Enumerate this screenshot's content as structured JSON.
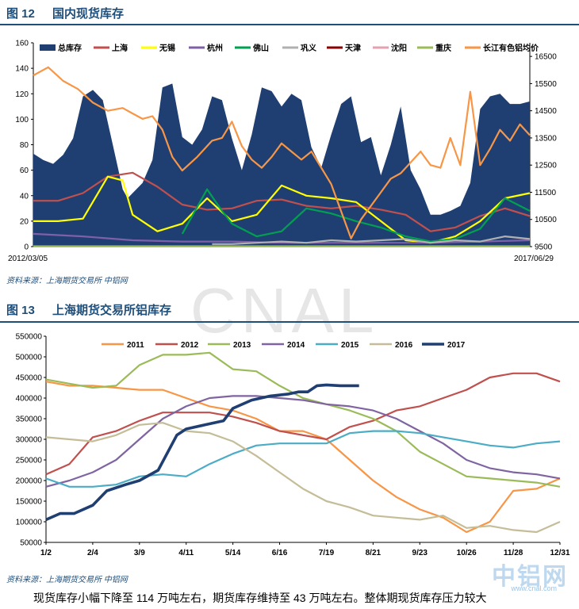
{
  "figure1": {
    "label": "图 12",
    "title": "国内现货库存",
    "source": "资料来源：上海期货交易所   中铝网",
    "chart_data": {
      "type": "area",
      "title": "",
      "x_start_label": "2012/03/05",
      "x_end_label": "2017/06/29",
      "y_left": {
        "min": 0,
        "max": 160,
        "ticks": [
          0,
          20,
          40,
          60,
          80,
          100,
          120,
          140,
          160
        ]
      },
      "y_right": {
        "min": 9500,
        "max": 17000,
        "ticks": [
          9500,
          10500,
          11500,
          12500,
          13500,
          14500,
          15500,
          16500
        ]
      },
      "legend": [
        "总库存",
        "上海",
        "无锡",
        "杭州",
        "佛山",
        "巩义",
        "天津",
        "沈阳",
        "重庆",
        "长江有色铝均价"
      ],
      "series": [
        {
          "name": "总库存",
          "kind": "area",
          "axis": "left",
          "color": "#1f3f73",
          "x": [
            0,
            2,
            4,
            6,
            8,
            10,
            12,
            14,
            16,
            18,
            19,
            20,
            22,
            24,
            26,
            28,
            30,
            32,
            34,
            36,
            38,
            40,
            42,
            44,
            46,
            48,
            50,
            52,
            54,
            56,
            58,
            60,
            62,
            64,
            66,
            68,
            70,
            72,
            74,
            76,
            78,
            80,
            82,
            84,
            86,
            88,
            90,
            92,
            94,
            96,
            98,
            100
          ],
          "y": [
            73,
            68,
            65,
            72,
            85,
            118,
            123,
            115,
            80,
            45,
            38,
            42,
            50,
            68,
            125,
            128,
            86,
            80,
            92,
            118,
            115,
            85,
            60,
            88,
            125,
            122,
            110,
            120,
            115,
            78,
            62,
            88,
            112,
            118,
            82,
            86,
            56,
            80,
            110,
            60,
            45,
            25,
            25,
            28,
            32,
            50,
            108,
            118,
            120,
            112,
            112,
            114
          ]
        },
        {
          "name": "上海",
          "kind": "line",
          "axis": "left",
          "color": "#c0504d",
          "x": [
            0,
            5,
            10,
            15,
            20,
            25,
            30,
            35,
            40,
            45,
            50,
            55,
            60,
            65,
            70,
            75,
            80,
            85,
            90,
            95,
            100
          ],
          "y": [
            36,
            36,
            42,
            55,
            58,
            47,
            33,
            29,
            30,
            36,
            37,
            32,
            30,
            32,
            29,
            25,
            12,
            15,
            24,
            30,
            24
          ]
        },
        {
          "name": "无锡",
          "kind": "line",
          "axis": "left",
          "color": "#ffff00",
          "x": [
            0,
            5,
            10,
            15,
            18,
            20,
            25,
            30,
            35,
            40,
            45,
            50,
            55,
            60,
            65,
            70,
            75,
            80,
            85,
            90,
            95,
            100
          ],
          "y": [
            20,
            20,
            22,
            55,
            52,
            25,
            12,
            18,
            38,
            20,
            25,
            48,
            40,
            38,
            35,
            20,
            5,
            3,
            8,
            20,
            38,
            42
          ]
        },
        {
          "name": "杭州",
          "kind": "line",
          "axis": "left",
          "color": "#7f60a8",
          "x": [
            0,
            10,
            20,
            30,
            40,
            50,
            60,
            70,
            80,
            90,
            100
          ],
          "y": [
            10,
            8,
            5,
            4,
            4,
            3,
            3,
            3,
            3,
            4,
            5
          ]
        },
        {
          "name": "佛山",
          "kind": "line",
          "axis": "left",
          "color": "#00a050",
          "x": [
            30,
            35,
            38,
            40,
            45,
            50,
            55,
            60,
            65,
            70,
            75,
            80,
            85,
            90,
            95,
            100
          ],
          "y": [
            10,
            45,
            28,
            18,
            8,
            12,
            30,
            26,
            20,
            15,
            8,
            4,
            6,
            14,
            38,
            28
          ]
        },
        {
          "name": "巩义",
          "kind": "line",
          "axis": "left",
          "color": "#b0b0b0",
          "x": [
            36,
            40,
            45,
            50,
            55,
            60,
            65,
            70,
            75,
            80,
            85,
            90,
            95,
            100
          ],
          "y": [
            2,
            2,
            3,
            4,
            3,
            5,
            4,
            5,
            6,
            3,
            5,
            4,
            8,
            6
          ]
        },
        {
          "name": "天津",
          "kind": "line",
          "axis": "left",
          "color": "#8b0000",
          "x": [
            0,
            100
          ],
          "y": [
            0.5,
            0.5
          ]
        },
        {
          "name": "沈阳",
          "kind": "line",
          "axis": "left",
          "color": "#e6a0b0",
          "x": [
            0,
            100
          ],
          "y": [
            0.3,
            0.3
          ]
        },
        {
          "name": "重庆",
          "kind": "line",
          "axis": "left",
          "color": "#9bbb59",
          "x": [
            0,
            100
          ],
          "y": [
            0.2,
            0.2
          ]
        },
        {
          "name": "长江有色铝均价",
          "kind": "line",
          "axis": "right",
          "color": "#f79646",
          "x": [
            0,
            3,
            6,
            9,
            12,
            15,
            18,
            20,
            22,
            24,
            26,
            28,
            30,
            33,
            36,
            38,
            40,
            42,
            44,
            46,
            48,
            50,
            52,
            54,
            56,
            58,
            60,
            62,
            64,
            66,
            68,
            70,
            72,
            74,
            76,
            78,
            80,
            82,
            84,
            86,
            88,
            90,
            92,
            94,
            96,
            98,
            100
          ],
          "y": [
            15800,
            16100,
            15600,
            15300,
            14800,
            14500,
            14600,
            14400,
            14200,
            14300,
            13800,
            12800,
            12300,
            12800,
            13400,
            13500,
            14100,
            13200,
            12700,
            12400,
            12800,
            13300,
            13000,
            12700,
            13000,
            12400,
            11800,
            10800,
            9800,
            10500,
            11000,
            11500,
            12000,
            12200,
            12600,
            13000,
            12500,
            12400,
            13500,
            12500,
            15200,
            12500,
            13100,
            13800,
            13400,
            14000,
            13600
          ]
        }
      ]
    }
  },
  "figure2": {
    "label": "图 13",
    "title": "上海期货交易所铝库存",
    "source": "资料来源：上海期货交易所   中铝网",
    "chart_data": {
      "type": "line",
      "title": "",
      "categories": [
        "1/2",
        "2/4",
        "3/9",
        "4/11",
        "5/14",
        "6/16",
        "7/19",
        "8/21",
        "9/23",
        "10/26",
        "11/28",
        "12/31"
      ],
      "ylim": [
        50000,
        550000
      ],
      "yticks": [
        50000,
        100000,
        150000,
        200000,
        250000,
        300000,
        350000,
        400000,
        450000,
        500000,
        550000
      ],
      "legend": [
        "2011",
        "2012",
        "2013",
        "2014",
        "2015",
        "2016",
        "2017"
      ],
      "series": [
        {
          "name": "2011",
          "color": "#f79646",
          "x": [
            0,
            0.5,
            1,
            1.5,
            2,
            2.5,
            3,
            3.5,
            4,
            4.5,
            5,
            5.5,
            6,
            6.5,
            7,
            7.5,
            8,
            8.5,
            9,
            9.5,
            10,
            10.5,
            11
          ],
          "y": [
            440000,
            430000,
            430000,
            425000,
            420000,
            420000,
            400000,
            380000,
            370000,
            350000,
            320000,
            320000,
            300000,
            250000,
            200000,
            160000,
            130000,
            110000,
            75000,
            100000,
            175000,
            180000,
            205000
          ]
        },
        {
          "name": "2012",
          "color": "#c0504d",
          "x": [
            0,
            0.5,
            1,
            1.5,
            2,
            2.5,
            3,
            3.5,
            4,
            4.5,
            5,
            5.5,
            6,
            6.5,
            7,
            7.5,
            8,
            8.5,
            9,
            9.5,
            10,
            10.5,
            11
          ],
          "y": [
            215000,
            240000,
            305000,
            320000,
            345000,
            365000,
            365000,
            365000,
            355000,
            340000,
            320000,
            310000,
            300000,
            330000,
            345000,
            370000,
            380000,
            400000,
            420000,
            450000,
            460000,
            460000,
            440000
          ]
        },
        {
          "name": "2013",
          "color": "#9bbb59",
          "x": [
            0,
            0.5,
            1,
            1.5,
            2,
            2.5,
            3,
            3.5,
            4,
            4.5,
            5,
            5.5,
            6,
            6.5,
            7,
            7.5,
            8,
            8.5,
            9,
            9.5,
            10,
            10.5,
            11
          ],
          "y": [
            445000,
            435000,
            425000,
            430000,
            480000,
            505000,
            505000,
            510000,
            470000,
            465000,
            430000,
            400000,
            385000,
            370000,
            350000,
            320000,
            270000,
            240000,
            210000,
            205000,
            200000,
            195000,
            185000
          ]
        },
        {
          "name": "2014",
          "color": "#8064a2",
          "x": [
            0,
            0.5,
            1,
            1.5,
            2,
            2.5,
            3,
            3.5,
            4,
            4.5,
            5,
            5.5,
            6,
            6.5,
            7,
            7.5,
            8,
            8.5,
            9,
            9.5,
            10,
            10.5,
            11
          ],
          "y": [
            185000,
            200000,
            220000,
            250000,
            300000,
            350000,
            380000,
            400000,
            405000,
            405000,
            400000,
            395000,
            385000,
            380000,
            370000,
            350000,
            320000,
            290000,
            250000,
            230000,
            220000,
            215000,
            205000
          ]
        },
        {
          "name": "2015",
          "color": "#4bacc6",
          "x": [
            0,
            0.5,
            1,
            1.5,
            2,
            2.5,
            3,
            3.5,
            4,
            4.5,
            5,
            5.5,
            6,
            6.5,
            7,
            7.5,
            8,
            8.5,
            9,
            9.5,
            10,
            10.5,
            11
          ],
          "y": [
            205000,
            185000,
            185000,
            190000,
            210000,
            215000,
            210000,
            240000,
            265000,
            285000,
            290000,
            290000,
            290000,
            315000,
            320000,
            320000,
            315000,
            305000,
            295000,
            285000,
            280000,
            290000,
            295000
          ]
        },
        {
          "name": "2016",
          "color": "#c4bd97",
          "x": [
            0,
            0.5,
            1,
            1.5,
            2,
            2.5,
            3,
            3.5,
            4,
            4.5,
            5,
            5.5,
            6,
            6.5,
            7,
            7.5,
            8,
            8.5,
            9,
            9.5,
            10,
            10.5,
            11
          ],
          "y": [
            305000,
            300000,
            295000,
            310000,
            335000,
            340000,
            320000,
            315000,
            295000,
            260000,
            220000,
            180000,
            150000,
            135000,
            115000,
            110000,
            105000,
            115000,
            85000,
            90000,
            80000,
            75000,
            100000
          ]
        },
        {
          "name": "2017",
          "color": "#1f3f73",
          "x": [
            0,
            0.3,
            0.6,
            1,
            1.3,
            1.7,
            2,
            2.4,
            2.8,
            3,
            3.4,
            3.8,
            4,
            4.4,
            4.8,
            5.2,
            5.4,
            5.6,
            5.8,
            6,
            6.3,
            6.7
          ],
          "y": [
            105000,
            120000,
            120000,
            140000,
            175000,
            190000,
            200000,
            225000,
            310000,
            325000,
            335000,
            345000,
            375000,
            395000,
            405000,
            410000,
            415000,
            415000,
            430000,
            432000,
            430000,
            430000
          ]
        }
      ]
    }
  },
  "watermark": "CNAL",
  "brand": "中铝网",
  "brand_url": "www.cnal.com",
  "caption": "现货库存小幅下降至 114 万吨左右，期货库存维持至 43 万吨左右。整体期现货库存压力较大"
}
